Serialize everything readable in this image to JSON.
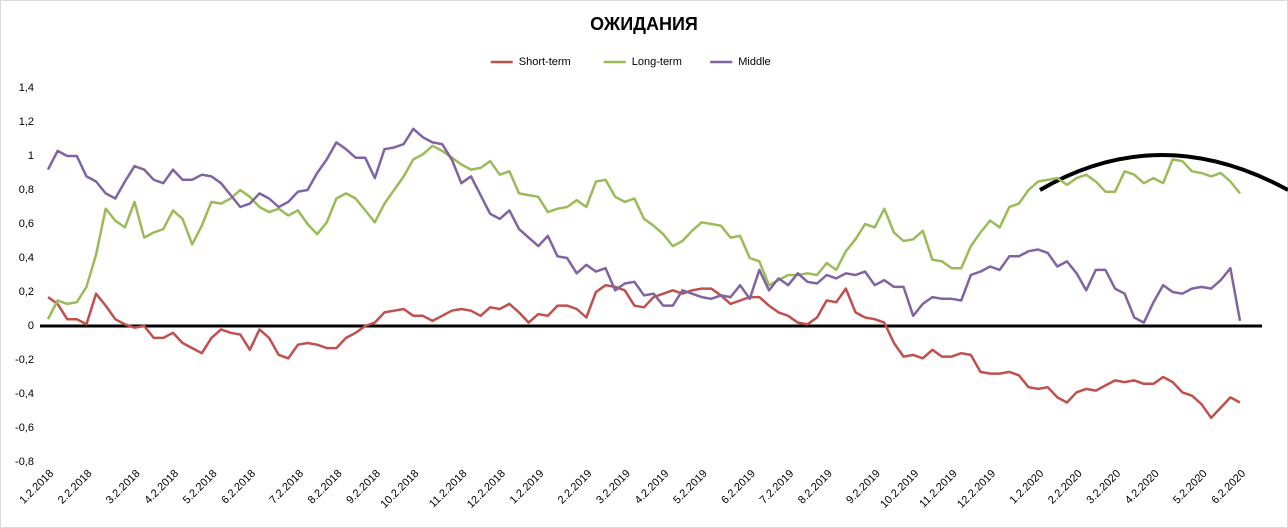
{
  "chart_data": {
    "type": "line",
    "title": "ОЖИДАНИЯ",
    "categories": [
      "1.2.2018",
      null,
      null,
      null,
      "2.2.2018",
      null,
      null,
      null,
      null,
      "3.2.2018",
      null,
      null,
      null,
      "4.2.2018",
      null,
      null,
      null,
      "5.2.2018",
      null,
      null,
      null,
      "6.2.2018",
      null,
      null,
      null,
      null,
      "7.2.2018",
      null,
      null,
      null,
      "8.2.2018",
      null,
      null,
      null,
      "9.2.2018",
      null,
      null,
      null,
      "10.2.2018",
      null,
      null,
      null,
      null,
      "11.2.2018",
      null,
      null,
      null,
      "12.2.2018",
      null,
      null,
      null,
      "1.2.2019",
      null,
      null,
      null,
      null,
      "2.2.2019",
      null,
      null,
      null,
      "3.2.2019",
      null,
      null,
      null,
      "4.2.2019",
      null,
      null,
      null,
      "5.2.2019",
      null,
      null,
      null,
      null,
      "6.2.2019",
      null,
      null,
      null,
      "7.2.2019",
      null,
      null,
      null,
      "8.2.2019",
      null,
      null,
      null,
      null,
      "9.2.2019",
      null,
      null,
      null,
      "10.2.2019",
      null,
      null,
      null,
      "11.2.2019",
      null,
      null,
      null,
      "12.2.2019",
      null,
      null,
      null,
      null,
      "1.2.2020",
      null,
      null,
      null,
      "2.2.2020",
      null,
      null,
      null,
      "3.2.2020",
      null,
      null,
      null,
      "4.2.2020",
      null,
      null,
      null,
      null,
      "5.2.2020",
      null,
      null,
      null,
      "6.2.2020"
    ],
    "series": [
      {
        "name": "Short-term",
        "color": "#c0504d",
        "values": [
          0.17,
          0.13,
          0.04,
          0.04,
          0.01,
          0.19,
          0.12,
          0.04,
          0.01,
          -0.01,
          0.0,
          -0.07,
          -0.07,
          -0.04,
          -0.1,
          -0.13,
          -0.16,
          -0.07,
          -0.02,
          -0.04,
          -0.05,
          -0.14,
          -0.02,
          -0.07,
          -0.17,
          -0.19,
          -0.11,
          -0.1,
          -0.11,
          -0.13,
          -0.13,
          -0.07,
          -0.04,
          0.0,
          0.02,
          0.08,
          0.09,
          0.1,
          0.06,
          0.06,
          0.03,
          0.06,
          0.09,
          0.1,
          0.09,
          0.06,
          0.11,
          0.1,
          0.13,
          0.08,
          0.02,
          0.07,
          0.06,
          0.12,
          0.12,
          0.1,
          0.05,
          0.2,
          0.24,
          0.23,
          0.21,
          0.12,
          0.11,
          0.17,
          0.19,
          0.21,
          0.19,
          0.21,
          0.22,
          0.22,
          0.18,
          0.13,
          0.15,
          0.17,
          0.17,
          0.12,
          0.08,
          0.06,
          0.02,
          0.01,
          0.05,
          0.15,
          0.14,
          0.22,
          0.08,
          0.05,
          0.04,
          0.02,
          -0.1,
          -0.18,
          -0.17,
          -0.19,
          -0.14,
          -0.18,
          -0.18,
          -0.16,
          -0.17,
          -0.27,
          -0.28,
          -0.28,
          -0.27,
          -0.29,
          -0.36,
          -0.37,
          -0.36,
          -0.42,
          -0.45,
          -0.39,
          -0.37,
          -0.38,
          -0.35,
          -0.32,
          -0.33,
          -0.32,
          -0.34,
          -0.34,
          -0.3,
          -0.33,
          -0.39,
          -0.41,
          -0.46,
          -0.54,
          -0.48,
          -0.42,
          -0.45
        ]
      },
      {
        "name": "Long-term",
        "color": "#9bbb59",
        "values": [
          0.04,
          0.15,
          0.13,
          0.14,
          0.23,
          0.42,
          0.69,
          0.62,
          0.58,
          0.73,
          0.52,
          0.55,
          0.57,
          0.68,
          0.63,
          0.48,
          0.59,
          0.73,
          0.72,
          0.75,
          0.8,
          0.76,
          0.7,
          0.67,
          0.69,
          0.65,
          0.68,
          0.6,
          0.54,
          0.61,
          0.75,
          0.78,
          0.75,
          0.68,
          0.61,
          0.72,
          0.8,
          0.88,
          0.98,
          1.01,
          1.06,
          1.03,
          0.99,
          0.95,
          0.92,
          0.93,
          0.97,
          0.89,
          0.91,
          0.78,
          0.77,
          0.76,
          0.67,
          0.69,
          0.7,
          0.74,
          0.7,
          0.85,
          0.86,
          0.76,
          0.73,
          0.75,
          0.63,
          0.59,
          0.54,
          0.47,
          0.5,
          0.56,
          0.61,
          0.6,
          0.59,
          0.52,
          0.53,
          0.4,
          0.38,
          0.24,
          0.27,
          0.3,
          0.3,
          0.31,
          0.3,
          0.37,
          0.33,
          0.44,
          0.51,
          0.6,
          0.58,
          0.69,
          0.55,
          0.5,
          0.51,
          0.56,
          0.39,
          0.38,
          0.34,
          0.34,
          0.47,
          0.55,
          0.62,
          0.58,
          0.7,
          0.72,
          0.8,
          0.85,
          0.86,
          0.87,
          0.83,
          0.87,
          0.89,
          0.85,
          0.79,
          0.79,
          0.91,
          0.89,
          0.84,
          0.87,
          0.84,
          0.98,
          0.97,
          0.91,
          0.9,
          0.88,
          0.9,
          0.85,
          0.78
        ]
      },
      {
        "name": "Middle",
        "color": "#8064a2",
        "values": [
          0.92,
          1.03,
          1.0,
          1.0,
          0.88,
          0.85,
          0.78,
          0.75,
          0.85,
          0.94,
          0.92,
          0.86,
          0.84,
          0.92,
          0.86,
          0.86,
          0.89,
          0.88,
          0.84,
          0.77,
          0.7,
          0.72,
          0.78,
          0.75,
          0.7,
          0.73,
          0.79,
          0.8,
          0.9,
          0.98,
          1.08,
          1.04,
          0.99,
          0.99,
          0.87,
          1.04,
          1.05,
          1.07,
          1.16,
          1.11,
          1.08,
          1.07,
          0.98,
          0.84,
          0.88,
          0.77,
          0.66,
          0.63,
          0.68,
          0.57,
          0.52,
          0.47,
          0.53,
          0.41,
          0.4,
          0.31,
          0.36,
          0.32,
          0.34,
          0.21,
          0.25,
          0.26,
          0.18,
          0.19,
          0.12,
          0.12,
          0.21,
          0.19,
          0.17,
          0.16,
          0.18,
          0.17,
          0.24,
          0.16,
          0.33,
          0.21,
          0.28,
          0.24,
          0.31,
          0.26,
          0.25,
          0.3,
          0.28,
          0.31,
          0.3,
          0.32,
          0.24,
          0.27,
          0.23,
          0.23,
          0.06,
          0.13,
          0.17,
          0.16,
          0.16,
          0.15,
          0.3,
          0.32,
          0.35,
          0.33,
          0.41,
          0.41,
          0.44,
          0.45,
          0.43,
          0.35,
          0.38,
          0.31,
          0.21,
          0.33,
          0.33,
          0.22,
          0.19,
          0.05,
          0.02,
          0.14,
          0.24,
          0.2,
          0.19,
          0.22,
          0.23,
          0.22,
          0.27,
          0.34,
          0.03
        ]
      }
    ],
    "ylim": [
      -0.8,
      1.4
    ],
    "yticks": [
      {
        "value": -0.8,
        "label": "-0,8"
      },
      {
        "value": -0.6,
        "label": "-0,6"
      },
      {
        "value": -0.4,
        "label": "-0,4"
      },
      {
        "value": -0.2,
        "label": "-0,2"
      },
      0,
      {
        "value": 0.2,
        "label": "0,2"
      },
      {
        "value": 0.4,
        "label": "0,4"
      },
      {
        "value": 0.6,
        "label": "0,6"
      },
      {
        "value": 0.8,
        "label": "0,8"
      },
      1,
      {
        "value": 1.2,
        "label": "1,2"
      },
      {
        "value": 1.4,
        "label": "1,4"
      }
    ],
    "grid": false,
    "legend": "top"
  }
}
